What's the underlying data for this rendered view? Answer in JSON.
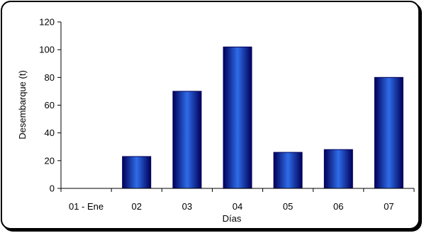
{
  "chart_data": {
    "type": "bar",
    "title": "",
    "xlabel": "Días",
    "ylabel": "Desembarque (t)",
    "categories": [
      "01 - Ene",
      "02",
      "03",
      "04",
      "05",
      "06",
      "07"
    ],
    "values": [
      0,
      23,
      70,
      102,
      26,
      28,
      80
    ],
    "ylim": [
      0,
      120
    ],
    "yticks": [
      0,
      20,
      40,
      60,
      80,
      100,
      120
    ],
    "yticks_text": [
      "0",
      "20",
      "40",
      "60",
      "80",
      "100",
      "120"
    ],
    "grid": false,
    "legend": "none",
    "colors": {
      "bar_edge": "#00005a",
      "bar_center": "#2f6ce8",
      "bar_mid": "#0a2fb0",
      "axis": "#000000"
    }
  }
}
